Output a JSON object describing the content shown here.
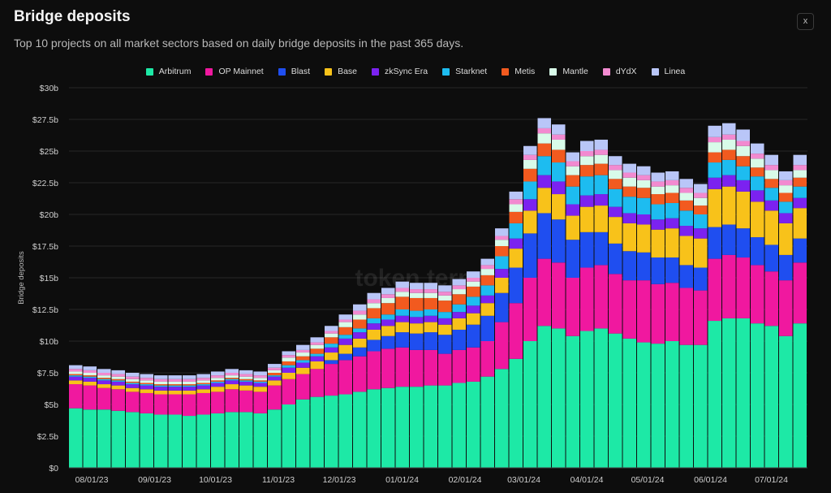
{
  "header": {
    "title": "Bridge deposits",
    "subtitle": "Top 10 projects on all market sectors based on daily bridge deposits in the past 365 days.",
    "close_label": "x",
    "watermark": "token terminal"
  },
  "chart_data": {
    "type": "bar",
    "stacked": true,
    "ylabel": "Bridge deposits",
    "ylim": [
      0,
      30
    ],
    "yunit": "b",
    "yticks": [
      "$0",
      "$2.5b",
      "$5b",
      "$7.5b",
      "$10b",
      "$12.5b",
      "$15b",
      "$17.5b",
      "$20b",
      "$22.5b",
      "$25b",
      "$27.5b",
      "$30b"
    ],
    "ytick_values": [
      0,
      2.5,
      5,
      7.5,
      10,
      12.5,
      15,
      17.5,
      20,
      22.5,
      25,
      27.5,
      30
    ],
    "xticks": [
      "08/01/23",
      "09/01/23",
      "10/01/23",
      "11/01/23",
      "12/01/23",
      "01/01/24",
      "02/01/24",
      "03/01/24",
      "04/01/24",
      "05/01/24",
      "06/01/24",
      "07/01/24"
    ],
    "xtick_dates": [
      "2023-08-01",
      "2023-09-01",
      "2023-10-01",
      "2023-11-01",
      "2023-12-01",
      "2024-01-01",
      "2024-02-01",
      "2024-03-01",
      "2024-04-01",
      "2024-05-01",
      "2024-06-01",
      "2024-07-01"
    ],
    "xlim": [
      "2023-07-24",
      "2024-07-22"
    ],
    "grid": true,
    "legend_position": "top",
    "x": [
      "2023-07-24",
      "2023-07-31",
      "2023-08-07",
      "2023-08-14",
      "2023-08-21",
      "2023-08-28",
      "2023-09-04",
      "2023-09-11",
      "2023-09-18",
      "2023-09-25",
      "2023-10-02",
      "2023-10-09",
      "2023-10-16",
      "2023-10-23",
      "2023-10-30",
      "2023-11-06",
      "2023-11-13",
      "2023-11-20",
      "2023-11-27",
      "2023-12-04",
      "2023-12-11",
      "2023-12-18",
      "2023-12-25",
      "2024-01-01",
      "2024-01-08",
      "2024-01-15",
      "2024-01-22",
      "2024-01-29",
      "2024-02-05",
      "2024-02-12",
      "2024-02-19",
      "2024-02-26",
      "2024-03-04",
      "2024-03-11",
      "2024-03-18",
      "2024-03-25",
      "2024-04-01",
      "2024-04-08",
      "2024-04-15",
      "2024-04-22",
      "2024-04-29",
      "2024-05-06",
      "2024-05-13",
      "2024-05-20",
      "2024-05-27",
      "2024-06-03",
      "2024-06-10",
      "2024-06-17",
      "2024-06-24",
      "2024-07-01",
      "2024-07-08",
      "2024-07-15"
    ],
    "series": [
      {
        "name": "Arbitrum",
        "color": "#1de9a6",
        "values": [
          4.7,
          4.6,
          4.6,
          4.5,
          4.4,
          4.3,
          4.2,
          4.2,
          4.1,
          4.2,
          4.3,
          4.4,
          4.4,
          4.3,
          4.6,
          5.0,
          5.4,
          5.6,
          5.7,
          5.8,
          6.0,
          6.2,
          6.3,
          6.4,
          6.4,
          6.5,
          6.5,
          6.7,
          6.8,
          7.2,
          7.8,
          8.6,
          10.0,
          11.2,
          11.0,
          10.4,
          10.8,
          11.0,
          10.6,
          10.2,
          9.9,
          9.8,
          10.0,
          9.7,
          9.7,
          11.6,
          11.8,
          11.8,
          11.4,
          11.2,
          10.4,
          11.4
        ]
      },
      {
        "name": "OP Mainnet",
        "color": "#f0189f",
        "values": [
          1.9,
          1.9,
          1.7,
          1.7,
          1.6,
          1.6,
          1.6,
          1.6,
          1.7,
          1.7,
          1.7,
          1.8,
          1.7,
          1.7,
          1.9,
          2.0,
          2.0,
          2.2,
          2.5,
          2.7,
          2.8,
          3.0,
          3.1,
          3.1,
          2.9,
          2.8,
          2.5,
          2.6,
          2.7,
          2.8,
          3.7,
          4.4,
          5.0,
          5.3,
          5.2,
          4.6,
          5.0,
          5.0,
          4.7,
          4.6,
          4.9,
          4.7,
          4.6,
          4.5,
          4.3,
          4.9,
          5.0,
          4.8,
          4.6,
          4.3,
          4.4,
          4.8
        ]
      },
      {
        "name": "Blast",
        "color": "#1f4ef0",
        "values": [
          0,
          0,
          0,
          0,
          0,
          0,
          0,
          0,
          0,
          0,
          0,
          0,
          0,
          0,
          0,
          0,
          0,
          0,
          0.3,
          0.5,
          0.7,
          0.9,
          1.0,
          1.2,
          1.3,
          1.4,
          1.5,
          1.6,
          1.8,
          2.0,
          2.3,
          2.8,
          3.5,
          3.6,
          3.4,
          3.0,
          2.8,
          2.6,
          2.4,
          2.3,
          2.2,
          2.1,
          2.0,
          1.8,
          1.8,
          2.5,
          2.4,
          2.3,
          2.2,
          2.1,
          2.0,
          1.9
        ]
      },
      {
        "name": "Base",
        "color": "#f8c21a",
        "values": [
          0.3,
          0.3,
          0.3,
          0.3,
          0.3,
          0.3,
          0.3,
          0.3,
          0.3,
          0.3,
          0.4,
          0.4,
          0.4,
          0.4,
          0.4,
          0.5,
          0.5,
          0.6,
          0.6,
          0.7,
          0.7,
          0.8,
          0.8,
          0.8,
          0.8,
          0.8,
          0.8,
          0.9,
          0.9,
          1.0,
          1.2,
          1.5,
          1.8,
          2.0,
          2.0,
          1.9,
          2.0,
          2.1,
          2.1,
          2.2,
          2.2,
          2.2,
          2.3,
          2.3,
          2.3,
          3.0,
          3.0,
          2.9,
          2.8,
          2.7,
          2.5,
          2.4
        ]
      },
      {
        "name": "zkSync Era",
        "color": "#7b22f0",
        "values": [
          0.3,
          0.3,
          0.3,
          0.3,
          0.3,
          0.3,
          0.3,
          0.3,
          0.3,
          0.3,
          0.3,
          0.3,
          0.3,
          0.3,
          0.3,
          0.4,
          0.4,
          0.4,
          0.4,
          0.5,
          0.5,
          0.5,
          0.5,
          0.5,
          0.5,
          0.5,
          0.5,
          0.5,
          0.6,
          0.6,
          0.7,
          0.8,
          0.9,
          1.0,
          1.0,
          0.9,
          0.9,
          0.9,
          0.8,
          0.8,
          0.8,
          0.8,
          0.8,
          0.8,
          0.8,
          0.9,
          0.9,
          0.9,
          0.9,
          0.8,
          0.8,
          0.8
        ]
      },
      {
        "name": "Starknet",
        "color": "#1dbcf0",
        "values": [
          0.1,
          0.1,
          0.1,
          0.1,
          0.1,
          0.1,
          0.1,
          0.1,
          0.1,
          0.1,
          0.1,
          0.1,
          0.1,
          0.1,
          0.1,
          0.2,
          0.2,
          0.2,
          0.3,
          0.3,
          0.3,
          0.4,
          0.4,
          0.5,
          0.5,
          0.5,
          0.5,
          0.6,
          0.7,
          0.8,
          1.0,
          1.2,
          1.4,
          1.5,
          1.5,
          1.4,
          1.5,
          1.5,
          1.4,
          1.3,
          1.3,
          1.2,
          1.2,
          1.2,
          1.1,
          1.2,
          1.2,
          1.1,
          1.1,
          1.0,
          0.9,
          0.9
        ]
      },
      {
        "name": "Metis",
        "color": "#f25a1f",
        "values": [
          0.1,
          0.1,
          0.1,
          0.1,
          0.1,
          0.1,
          0.1,
          0.1,
          0.1,
          0.1,
          0.1,
          0.1,
          0.1,
          0.1,
          0.2,
          0.3,
          0.3,
          0.4,
          0.5,
          0.6,
          0.7,
          0.8,
          0.9,
          1.0,
          1.0,
          0.9,
          0.9,
          0.8,
          0.8,
          0.8,
          0.8,
          0.9,
          1.0,
          1.0,
          1.0,
          0.9,
          0.9,
          0.9,
          0.8,
          0.8,
          0.8,
          0.8,
          0.8,
          0.8,
          0.7,
          0.8,
          0.8,
          0.8,
          0.7,
          0.7,
          0.7,
          0.7
        ]
      },
      {
        "name": "Mantle",
        "color": "#d8fbe9",
        "values": [
          0.2,
          0.2,
          0.2,
          0.2,
          0.2,
          0.2,
          0.2,
          0.2,
          0.2,
          0.2,
          0.2,
          0.2,
          0.2,
          0.2,
          0.2,
          0.3,
          0.3,
          0.3,
          0.3,
          0.4,
          0.4,
          0.4,
          0.4,
          0.4,
          0.4,
          0.4,
          0.4,
          0.4,
          0.4,
          0.5,
          0.5,
          0.6,
          0.7,
          0.8,
          0.8,
          0.7,
          0.7,
          0.7,
          0.7,
          0.7,
          0.6,
          0.6,
          0.6,
          0.6,
          0.6,
          0.8,
          0.8,
          0.8,
          0.7,
          0.7,
          0.6,
          0.6
        ]
      },
      {
        "name": "dYdX",
        "color": "#f28ad0",
        "values": [
          0.2,
          0.2,
          0.2,
          0.2,
          0.2,
          0.2,
          0.2,
          0.2,
          0.2,
          0.2,
          0.2,
          0.2,
          0.2,
          0.2,
          0.2,
          0.2,
          0.2,
          0.2,
          0.2,
          0.2,
          0.3,
          0.3,
          0.3,
          0.3,
          0.3,
          0.3,
          0.3,
          0.3,
          0.3,
          0.3,
          0.3,
          0.4,
          0.4,
          0.4,
          0.4,
          0.4,
          0.4,
          0.4,
          0.4,
          0.4,
          0.4,
          0.4,
          0.4,
          0.4,
          0.4,
          0.4,
          0.4,
          0.4,
          0.4,
          0.4,
          0.4,
          0.4
        ]
      },
      {
        "name": "Linea",
        "color": "#b9c6f8",
        "values": [
          0.3,
          0.3,
          0.3,
          0.3,
          0.3,
          0.3,
          0.3,
          0.3,
          0.3,
          0.3,
          0.3,
          0.3,
          0.3,
          0.3,
          0.3,
          0.3,
          0.4,
          0.4,
          0.4,
          0.4,
          0.5,
          0.5,
          0.5,
          0.5,
          0.5,
          0.5,
          0.5,
          0.5,
          0.5,
          0.5,
          0.6,
          0.6,
          0.7,
          0.8,
          0.8,
          0.7,
          0.8,
          0.8,
          0.7,
          0.7,
          0.7,
          0.7,
          0.7,
          0.7,
          0.7,
          0.9,
          0.9,
          0.9,
          0.8,
          0.8,
          0.7,
          0.8
        ]
      }
    ]
  }
}
